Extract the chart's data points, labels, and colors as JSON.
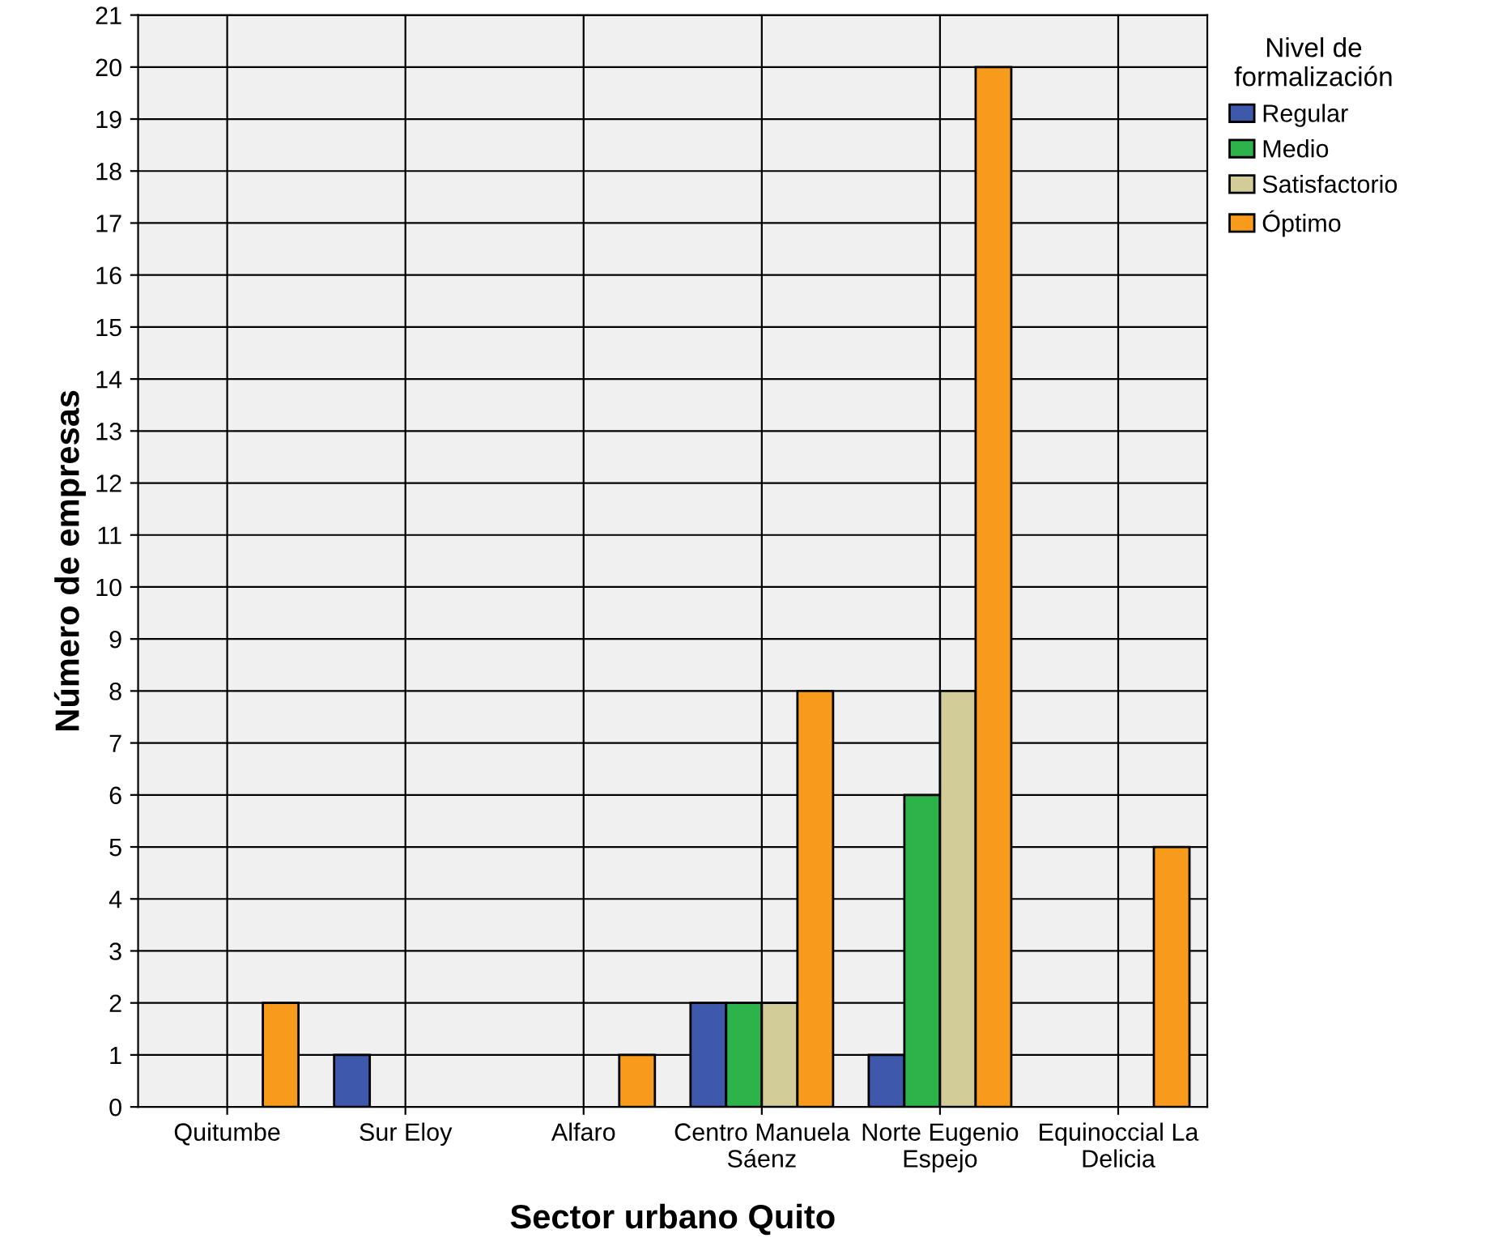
{
  "chart_data": {
    "type": "bar",
    "xlabel": "Sector urbano Quito",
    "ylabel": "Número de empresas",
    "legend_title": "Nivel de formalización",
    "categories": [
      "Quitumbe",
      "Sur Eloy",
      "Alfaro",
      "Centro Manuela Sáenz",
      "Norte Eugenio Espejo",
      "Equinoccial La Delicia"
    ],
    "series": [
      {
        "name": "Regular",
        "color": "#3e58ac",
        "values": [
          null,
          1,
          null,
          2,
          1,
          null
        ]
      },
      {
        "name": "Medio",
        "color": "#2cb34a",
        "values": [
          null,
          null,
          null,
          2,
          6,
          null
        ]
      },
      {
        "name": "Satisfactorio",
        "color": "#d2cc98",
        "values": [
          null,
          null,
          null,
          2,
          8,
          null
        ]
      },
      {
        "name": "Óptimo",
        "color": "#f89a1c",
        "values": [
          2,
          null,
          1,
          8,
          20,
          5
        ]
      }
    ],
    "ylim": [
      0,
      21
    ],
    "yticks": [
      0,
      1,
      2,
      3,
      4,
      5,
      6,
      7,
      8,
      9,
      10,
      11,
      12,
      13,
      14,
      15,
      16,
      17,
      18,
      19,
      20,
      21
    ],
    "grid": true,
    "legend": "top right"
  }
}
